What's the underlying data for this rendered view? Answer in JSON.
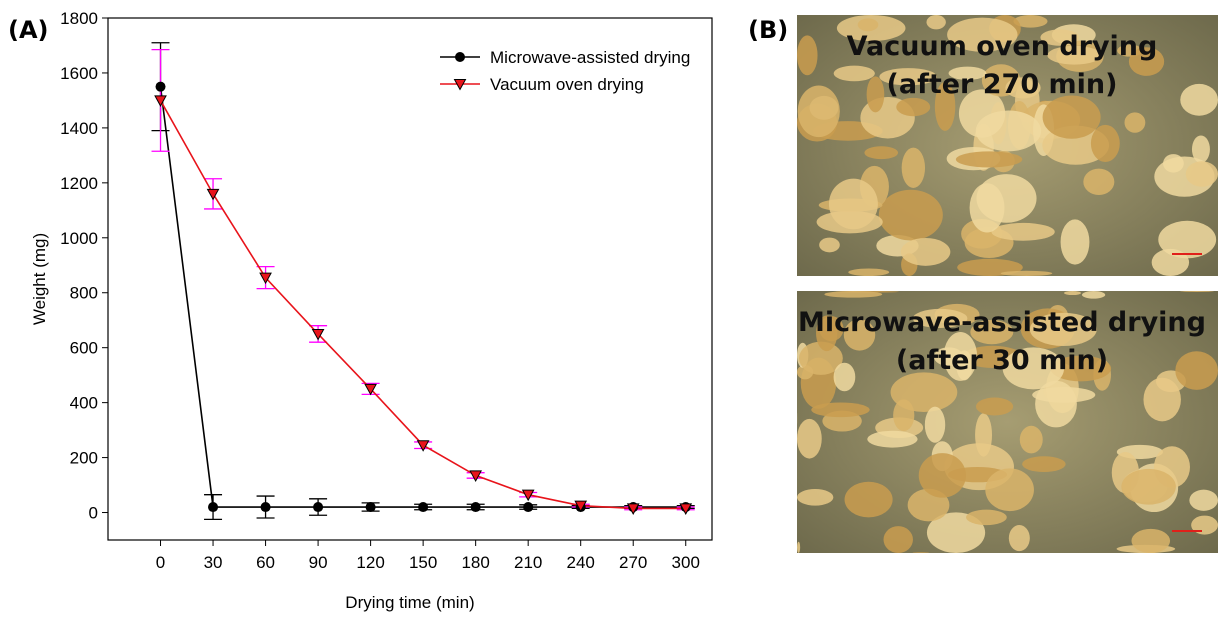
{
  "panel_label": "(A)",
  "chart_data": {
    "type": "line",
    "x_label": "Drying time (min)",
    "y_label": "Weight (mg)",
    "x": [
      0,
      30,
      60,
      90,
      120,
      150,
      180,
      210,
      240,
      270,
      300
    ],
    "xlim": [
      -30,
      315
    ],
    "xticks": [
      0,
      30,
      60,
      90,
      120,
      150,
      180,
      210,
      240,
      270,
      300
    ],
    "ylim": [
      -100,
      1800
    ],
    "yticks": [
      0,
      200,
      400,
      600,
      800,
      1000,
      1200,
      1400,
      1600,
      1800
    ],
    "legend": "top-right",
    "series": [
      {
        "name": "Microwave-assisted drying",
        "color": "#000000",
        "error_color": "#000000",
        "marker": "circle",
        "values": [
          1550,
          20,
          20,
          20,
          20,
          20,
          20,
          20,
          20,
          20,
          20
        ],
        "errors": [
          160,
          45,
          40,
          30,
          15,
          10,
          10,
          8,
          5,
          5,
          5
        ]
      },
      {
        "name": "Vacuum oven drying",
        "color": "#e8141b",
        "error_color": "#ff00ff",
        "marker": "triangle",
        "values": [
          1500,
          1160,
          855,
          650,
          450,
          245,
          135,
          65,
          25,
          15,
          15
        ],
        "errors": [
          185,
          55,
          40,
          30,
          20,
          12,
          10,
          8,
          5,
          5,
          5
        ]
      }
    ]
  },
  "panel_b": {
    "label": "(B)",
    "images": [
      {
        "caption": [
          "Vacuum oven drying",
          "(after 270 min)"
        ]
      },
      {
        "caption": [
          "Microwave-assisted drying",
          "(after 30 min)"
        ]
      }
    ]
  }
}
